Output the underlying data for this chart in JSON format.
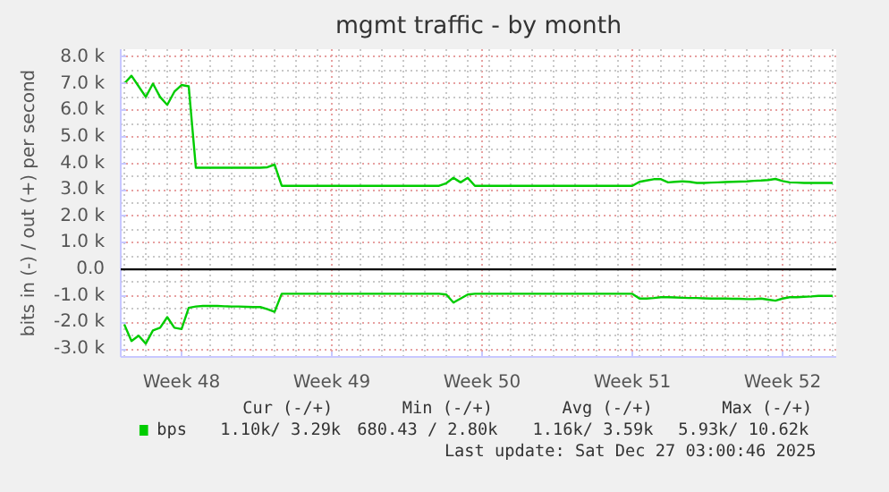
{
  "chart_data": {
    "type": "line",
    "title": "mgmt traffic - by month",
    "ylabel": "bits in (-) / out (+) per second",
    "categories": [
      null,
      null,
      null,
      null,
      null,
      null,
      null,
      null,
      "Week 48",
      null,
      null,
      null,
      null,
      null,
      null,
      null,
      null,
      null,
      null,
      null,
      null,
      null,
      null,
      null,
      null,
      null,
      null,
      null,
      null,
      "Week 49",
      null,
      null,
      null,
      null,
      null,
      null,
      null,
      null,
      null,
      null,
      null,
      null,
      null,
      null,
      null,
      null,
      null,
      null,
      null,
      null,
      "Week 50",
      null,
      null,
      null,
      null,
      null,
      null,
      null,
      null,
      null,
      null,
      null,
      null,
      null,
      null,
      null,
      null,
      null,
      null,
      null,
      null,
      "Week 51",
      null,
      null,
      null,
      null,
      null,
      null,
      null,
      null,
      null,
      null,
      null,
      null,
      null,
      null,
      null,
      null,
      null,
      null,
      null,
      null,
      "Week 52",
      null,
      null,
      null,
      null,
      null,
      null,
      null
    ],
    "ylim": [
      -3300,
      8300
    ],
    "yticks": [
      {
        "value": -3000,
        "label": "-3.0 k"
      },
      {
        "value": -2000,
        "label": "-2.0 k"
      },
      {
        "value": -1000,
        "label": "-1.0 k"
      },
      {
        "value": 0,
        "label": "0.0"
      },
      {
        "value": 1000,
        "label": "1.0 k"
      },
      {
        "value": 2000,
        "label": "2.0 k"
      },
      {
        "value": 3000,
        "label": "3.0 k"
      },
      {
        "value": 4000,
        "label": "4.0 k"
      },
      {
        "value": 5000,
        "label": "5.0 k"
      },
      {
        "value": 6000,
        "label": "6.0 k"
      },
      {
        "value": 7000,
        "label": "7.0 k"
      },
      {
        "value": 8000,
        "label": "8.0 k"
      }
    ],
    "grid": true,
    "legend": "bottom",
    "series": [
      {
        "name": "bps",
        "color": "#00cc00",
        "values": [
          7000,
          7300,
          6900,
          6500,
          7000,
          6500,
          6200,
          6700,
          6950,
          6900,
          3830,
          3830,
          3830,
          3830,
          3830,
          3830,
          3830,
          3830,
          3830,
          3830,
          3850,
          3950,
          3150,
          3150,
          3150,
          3150,
          3150,
          3150,
          3150,
          3150,
          3150,
          3150,
          3150,
          3150,
          3150,
          3150,
          3150,
          3150,
          3150,
          3150,
          3150,
          3150,
          3150,
          3150,
          3150,
          3250,
          3450,
          3280,
          3450,
          3150,
          3150,
          3150,
          3150,
          3150,
          3150,
          3150,
          3150,
          3150,
          3150,
          3150,
          3150,
          3150,
          3150,
          3150,
          3150,
          3150,
          3150,
          3150,
          3150,
          3150,
          3150,
          3150,
          3300,
          3350,
          3400,
          3400,
          3280,
          3300,
          3320,
          3300,
          3260,
          3260,
          3270,
          3280,
          3290,
          3300,
          3310,
          3320,
          3340,
          3350,
          3370,
          3410,
          3330,
          3280,
          3270,
          3260,
          3260,
          3260,
          3260,
          3260
        ]
      },
      {
        "color": "#00cc00",
        "values": [
          -2080,
          -2700,
          -2500,
          -2800,
          -2300,
          -2200,
          -1800,
          -2200,
          -2250,
          -1450,
          -1400,
          -1380,
          -1380,
          -1380,
          -1390,
          -1400,
          -1400,
          -1410,
          -1420,
          -1420,
          -1500,
          -1600,
          -920,
          -920,
          -920,
          -920,
          -920,
          -920,
          -920,
          -920,
          -920,
          -920,
          -920,
          -920,
          -920,
          -920,
          -920,
          -920,
          -920,
          -920,
          -920,
          -920,
          -920,
          -920,
          -920,
          -950,
          -1250,
          -1100,
          -950,
          -920,
          -920,
          -920,
          -920,
          -920,
          -920,
          -920,
          -920,
          -920,
          -920,
          -920,
          -920,
          -920,
          -920,
          -920,
          -920,
          -920,
          -920,
          -920,
          -920,
          -920,
          -920,
          -920,
          -1100,
          -1100,
          -1080,
          -1050,
          -1050,
          -1060,
          -1070,
          -1080,
          -1080,
          -1090,
          -1100,
          -1100,
          -1100,
          -1110,
          -1110,
          -1120,
          -1120,
          -1100,
          -1140,
          -1180,
          -1100,
          -1050,
          -1050,
          -1030,
          -1020,
          -1000,
          -1000,
          -1000
        ]
      }
    ],
    "ref_lines": [
      {
        "axis": "y",
        "value": 0,
        "color": "#000000"
      }
    ],
    "annotations": [
      "Cur (-/+)",
      "Min (-/+)",
      "Avg (-/+)",
      "Max (-/+)",
      "1.10k/   3.29k",
      "680.43 /   2.80k",
      "1.16k/   3.59k",
      "5.93k/  10.62k",
      "Last update: Sat Dec 27 03:00:46 2025"
    ]
  }
}
